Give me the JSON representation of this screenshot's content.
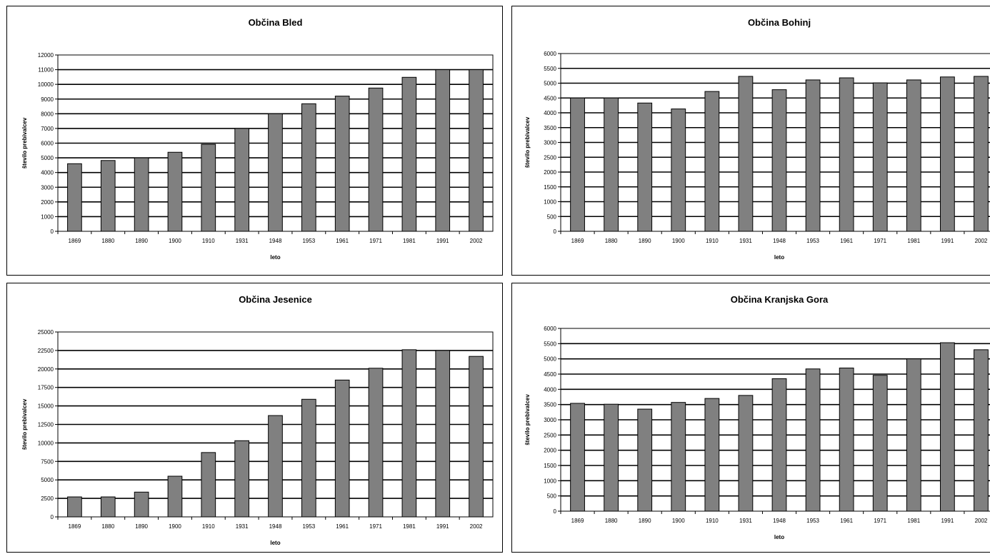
{
  "colors": {
    "bar": "#808080",
    "bar_stroke": "#000000",
    "grid": "#000000",
    "background": "#ffffff"
  },
  "chart_data": [
    {
      "type": "bar",
      "title": "Občina Bled",
      "xlabel": "leto",
      "ylabel": "število prebivalcev",
      "categories": [
        "1869",
        "1880",
        "1890",
        "1900",
        "1910",
        "1931",
        "1948",
        "1953",
        "1961",
        "1971",
        "1981",
        "1991",
        "2002"
      ],
      "values": [
        4600,
        4820,
        5000,
        5380,
        5920,
        7000,
        8000,
        8680,
        9200,
        9750,
        10480,
        11000,
        11000
      ],
      "ylim": [
        0,
        12000
      ],
      "yticks": [
        0,
        1000,
        2000,
        3000,
        4000,
        5000,
        6000,
        7000,
        8000,
        9000,
        10000,
        11000,
        12000
      ],
      "grid": true,
      "legend": "none"
    },
    {
      "type": "bar",
      "title": "Občina Bohinj",
      "xlabel": "leto",
      "ylabel": "število prebivalcev",
      "categories": [
        "1869",
        "1880",
        "1890",
        "1900",
        "1910",
        "1931",
        "1948",
        "1953",
        "1961",
        "1971",
        "1981",
        "1991",
        "2002"
      ],
      "values": [
        4500,
        4500,
        4330,
        4130,
        4720,
        5230,
        4780,
        5110,
        5180,
        5010,
        5110,
        5210,
        5230
      ],
      "ylim": [
        0,
        6000
      ],
      "yticks": [
        0,
        500,
        1000,
        1500,
        2000,
        2500,
        3000,
        3500,
        4000,
        4500,
        5000,
        5500,
        6000
      ],
      "grid": true,
      "legend": "none"
    },
    {
      "type": "bar",
      "title": "Občina Jesenice",
      "xlabel": "leto",
      "ylabel": "število prebivalcev",
      "categories": [
        "1869",
        "1880",
        "1890",
        "1900",
        "1910",
        "1931",
        "1948",
        "1953",
        "1961",
        "1971",
        "1981",
        "1991",
        "2002"
      ],
      "values": [
        2700,
        2700,
        3350,
        5500,
        8700,
        10300,
        13700,
        15900,
        18500,
        20100,
        22600,
        22500,
        21700
      ],
      "ylim": [
        0,
        25000
      ],
      "yticks": [
        0,
        2500,
        5000,
        7500,
        10000,
        12500,
        15000,
        17500,
        20000,
        22500,
        25000
      ],
      "grid": true,
      "legend": "none"
    },
    {
      "type": "bar",
      "title": "Občina Kranjska Gora",
      "xlabel": "leto",
      "ylabel": "število prebivalcev",
      "categories": [
        "1869",
        "1880",
        "1890",
        "1900",
        "1910",
        "1931",
        "1948",
        "1953",
        "1961",
        "1971",
        "1981",
        "1991",
        "2002"
      ],
      "values": [
        3540,
        3510,
        3350,
        3570,
        3700,
        3800,
        4350,
        4670,
        4700,
        4460,
        5000,
        5530,
        5300
      ],
      "ylim": [
        0,
        6000
      ],
      "yticks": [
        0,
        500,
        1000,
        1500,
        2000,
        2500,
        3000,
        3500,
        4000,
        4500,
        5000,
        5500,
        6000
      ],
      "grid": true,
      "legend": "none"
    }
  ]
}
